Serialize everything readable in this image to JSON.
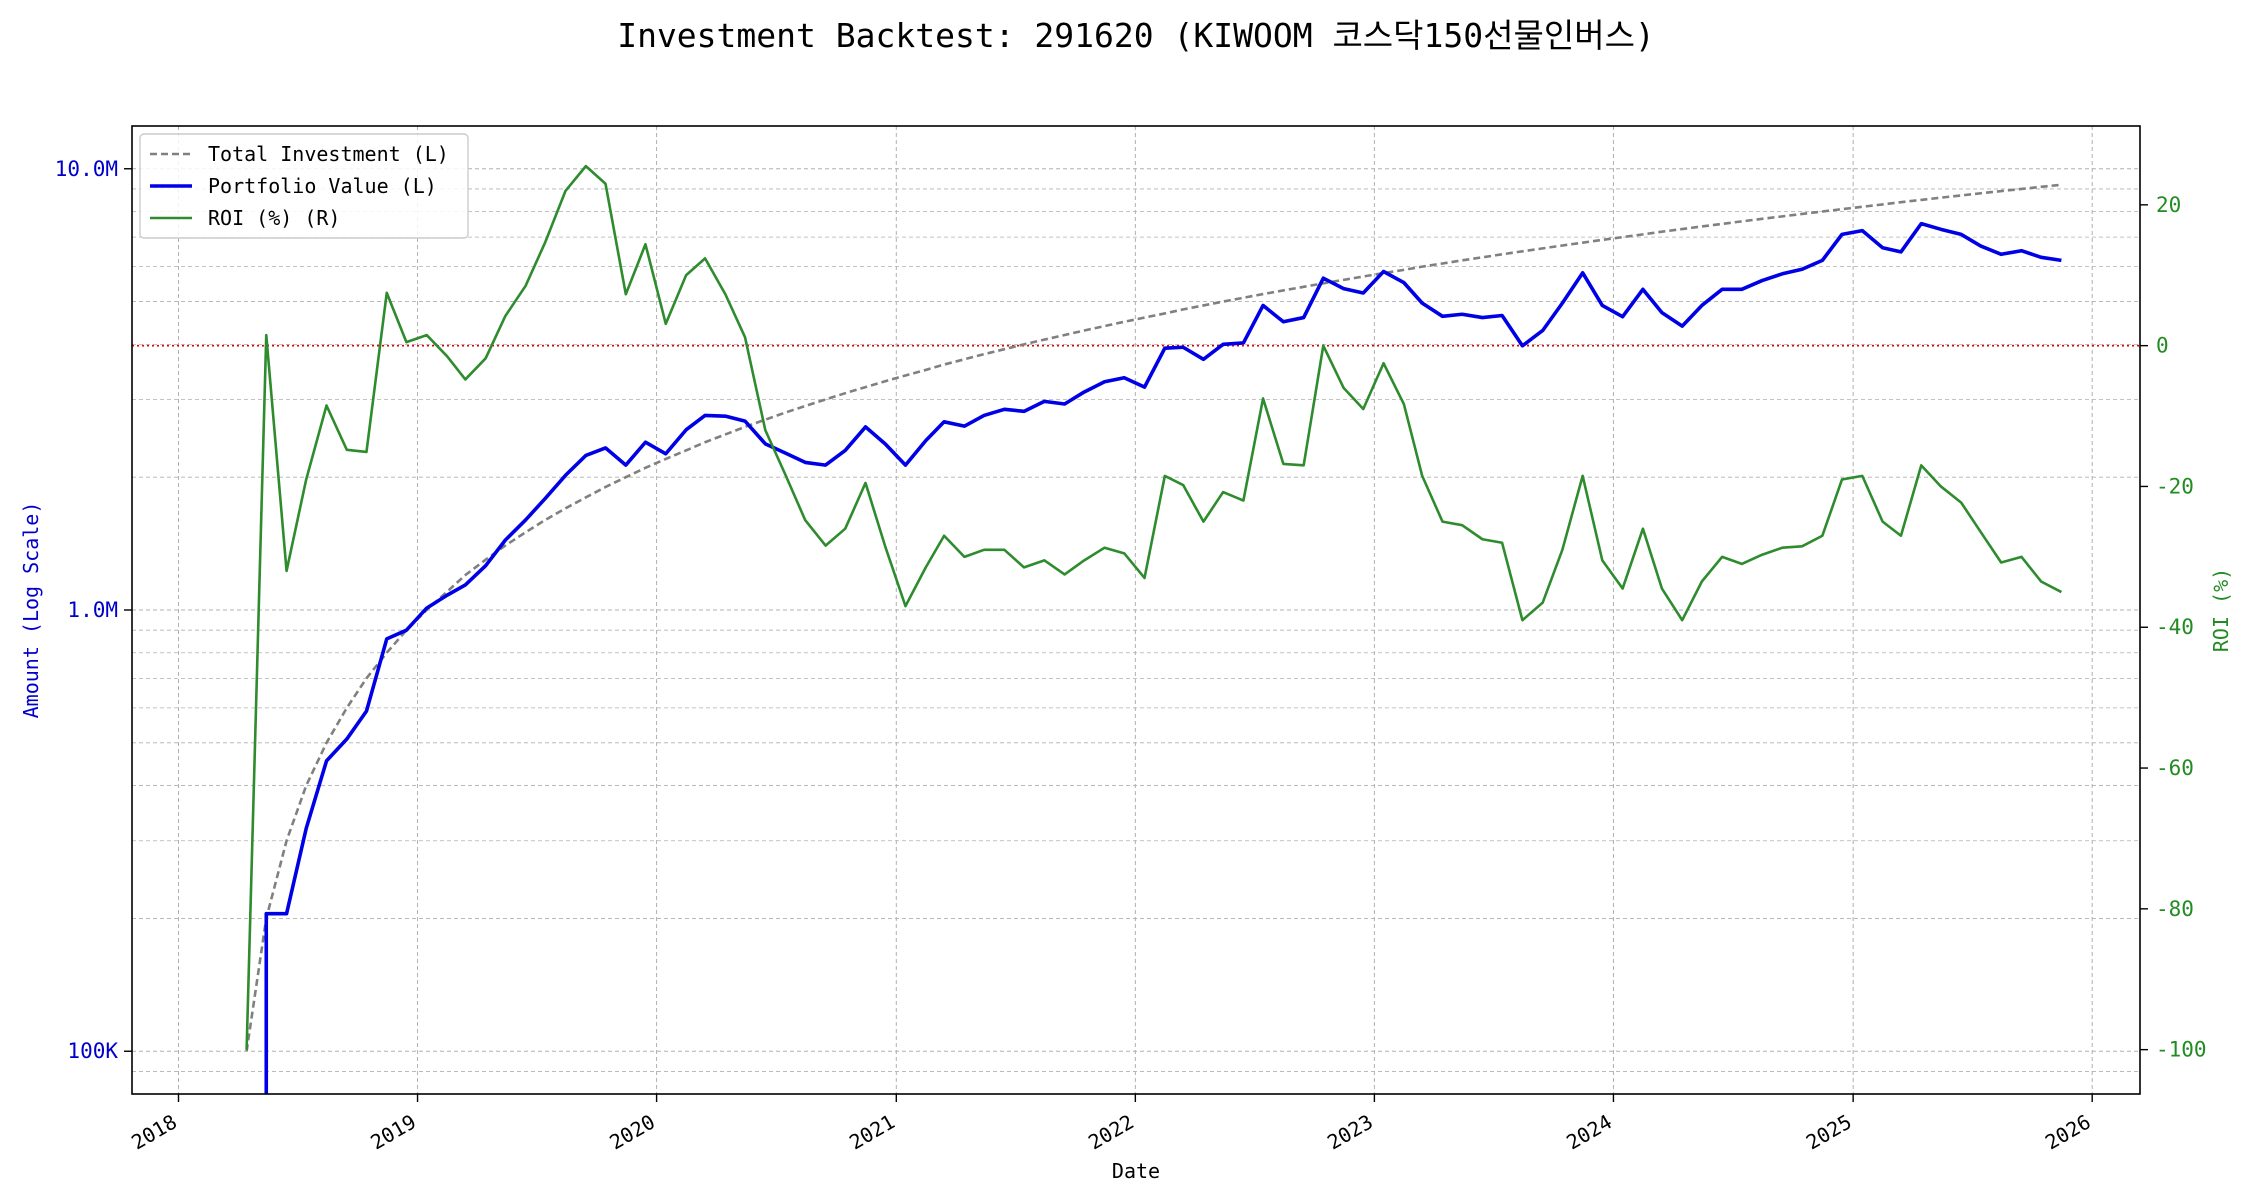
{
  "chart_data": {
    "type": "line",
    "title": "Investment Backtest: 291620 (KIWOOM 코스닥150선물인버스)",
    "xlabel": "Date",
    "ylabel_left": "Amount (Log Scale)",
    "ylabel_right": "ROI (%)",
    "x_ticks": [
      "2018",
      "2019",
      "2020",
      "2021",
      "2022",
      "2023",
      "2024",
      "2025",
      "2026"
    ],
    "y_left_ticks": [
      "100K",
      "1.0M",
      "10.0M"
    ],
    "y_right_ticks": [
      "-100",
      "-80",
      "-60",
      "-40",
      "-20",
      "0",
      "20"
    ],
    "y_left_scale": "log",
    "y_left_range": [
      80000,
      12500000
    ],
    "y_right_range": [
      -106.3,
      31.2
    ],
    "x_range": [
      "2017-10-22",
      "2026-03-15"
    ],
    "grid": true,
    "zero_reference_line": 0,
    "legend_position": "top-left",
    "legend": [
      "Total Investment (L)",
      "Portfolio Value (L)",
      "ROI (%) (R)"
    ],
    "colors": {
      "total_investment": "#808080",
      "portfolio_value": "#0000e6",
      "roi": "#2e8b2e",
      "zero_line": "#e00000",
      "grid": "#b0b0b0"
    },
    "series": [
      {
        "name": "Total Investment (L)",
        "axis": "left",
        "x": [
          "2018-04",
          "2018-05",
          "2018-06",
          "2018-07",
          "2018-08",
          "2018-09",
          "2018-10",
          "2018-11",
          "2018-12",
          "2019-01",
          "2019-02",
          "2019-03",
          "2019-04",
          "2019-05",
          "2019-06",
          "2019-07",
          "2019-08",
          "2019-09",
          "2019-10",
          "2019-11",
          "2019-12",
          "2020-01",
          "2020-02",
          "2020-03",
          "2020-04",
          "2020-05",
          "2020-06",
          "2020-07",
          "2020-08",
          "2020-09",
          "2020-10",
          "2020-11",
          "2020-12",
          "2021-01",
          "2021-02",
          "2021-03",
          "2021-04",
          "2021-05",
          "2021-06",
          "2021-07",
          "2021-08",
          "2021-09",
          "2021-10",
          "2021-11",
          "2021-12",
          "2022-01",
          "2022-02",
          "2022-03",
          "2022-04",
          "2022-05",
          "2022-06",
          "2022-07",
          "2022-08",
          "2022-09",
          "2022-10",
          "2022-11",
          "2022-12",
          "2023-01",
          "2023-02",
          "2023-03",
          "2023-04",
          "2023-05",
          "2023-06",
          "2023-07",
          "2023-08",
          "2023-09",
          "2023-10",
          "2023-11",
          "2023-12",
          "2024-01",
          "2024-02",
          "2024-03",
          "2024-04",
          "2024-05",
          "2024-06",
          "2024-07",
          "2024-08",
          "2024-09",
          "2024-10",
          "2024-11",
          "2024-12",
          "2025-01",
          "2025-02",
          "2025-03",
          "2025-04",
          "2025-05",
          "2025-06",
          "2025-07",
          "2025-08",
          "2025-09",
          "2025-10",
          "2025-11"
        ],
        "values": [
          100000,
          200000,
          300000,
          400000,
          500000,
          600000,
          700000,
          800000,
          900000,
          1000000,
          1100000,
          1200000,
          1300000,
          1400000,
          1500000,
          1600000,
          1700000,
          1800000,
          1900000,
          2000000,
          2100000,
          2200000,
          2300000,
          2400000,
          2500000,
          2600000,
          2700000,
          2800000,
          2900000,
          3000000,
          3100000,
          3200000,
          3300000,
          3400000,
          3500000,
          3600000,
          3700000,
          3800000,
          3900000,
          4000000,
          4100000,
          4200000,
          4300000,
          4400000,
          4500000,
          4600000,
          4700000,
          4800000,
          4900000,
          5000000,
          5100000,
          5200000,
          5300000,
          5400000,
          5500000,
          5600000,
          5700000,
          5800000,
          5900000,
          6000000,
          6100000,
          6200000,
          6300000,
          6400000,
          6500000,
          6600000,
          6700000,
          6800000,
          6900000,
          7000000,
          7100000,
          7200000,
          7300000,
          7400000,
          7500000,
          7600000,
          7700000,
          7800000,
          7900000,
          8000000,
          8100000,
          8200000,
          8300000,
          8400000,
          8500000,
          8600000,
          8700000,
          8800000,
          8900000,
          9000000,
          9100000,
          9200000
        ]
      },
      {
        "name": "Portfolio Value (L)",
        "axis": "left",
        "x": [
          "2018-05",
          "2018-06",
          "2018-07",
          "2018-08",
          "2018-09",
          "2018-10",
          "2018-11",
          "2018-12",
          "2019-01",
          "2019-02",
          "2019-03",
          "2019-04",
          "2019-05",
          "2019-06",
          "2019-07",
          "2019-08",
          "2019-09",
          "2019-10",
          "2019-11",
          "2019-12",
          "2020-01",
          "2020-02",
          "2020-03",
          "2020-04",
          "2020-05",
          "2020-06",
          "2020-07",
          "2020-08",
          "2020-09",
          "2020-10",
          "2020-11",
          "2020-12",
          "2021-01",
          "2021-02",
          "2021-03",
          "2021-04",
          "2021-05",
          "2021-06",
          "2021-07",
          "2021-08",
          "2021-09",
          "2021-10",
          "2021-11",
          "2021-12",
          "2022-01",
          "2022-02",
          "2022-03",
          "2022-04",
          "2022-05",
          "2022-06",
          "2022-07",
          "2022-08",
          "2022-09",
          "2022-10",
          "2022-11",
          "2022-12",
          "2023-01",
          "2023-02",
          "2023-03",
          "2023-04",
          "2023-05",
          "2023-06",
          "2023-07",
          "2023-08",
          "2023-09",
          "2023-10",
          "2023-11",
          "2023-12",
          "2024-01",
          "2024-02",
          "2024-03",
          "2024-04",
          "2024-05",
          "2024-06",
          "2024-07",
          "2024-08",
          "2024-09",
          "2024-10",
          "2024-11",
          "2024-12",
          "2025-01",
          "2025-02",
          "2025-03",
          "2025-04",
          "2025-05",
          "2025-06",
          "2025-07",
          "2025-08",
          "2025-09",
          "2025-10",
          "2025-11"
        ],
        "values": [
          205000,
          205000,
          320000,
          455000,
          510000,
          590000,
          860000,
          900000,
          1010000,
          1080000,
          1140000,
          1260000,
          1440000,
          1600000,
          1790000,
          2020000,
          2240000,
          2330000,
          2130000,
          2400000,
          2260000,
          2560000,
          2760000,
          2750000,
          2680000,
          2380000,
          2270000,
          2160000,
          2130000,
          2300000,
          2600000,
          2380000,
          2130000,
          2420000,
          2670000,
          2610000,
          2760000,
          2850000,
          2820000,
          2970000,
          2930000,
          3120000,
          3290000,
          3360000,
          3200000,
          3920000,
          3940000,
          3700000,
          4000000,
          4030000,
          4900000,
          4500000,
          4600000,
          5650000,
          5350000,
          5230000,
          5850000,
          5520000,
          4960000,
          4630000,
          4680000,
          4600000,
          4650000,
          3970000,
          4300000,
          4960000,
          5810000,
          4900000,
          4620000,
          5330000,
          4720000,
          4400000,
          4900000,
          5330000,
          5330000,
          5580000,
          5780000,
          5920000,
          6200000,
          7100000,
          7240000,
          6620000,
          6480000,
          7510000,
          7290000,
          7100000,
          6680000,
          6400000,
          6520000,
          6300000,
          6200000
        ]
      },
      {
        "name": "ROI (%) (R)",
        "axis": "right",
        "x": [
          "2018-04",
          "2018-05",
          "2018-06",
          "2018-07",
          "2018-08",
          "2018-09",
          "2018-10",
          "2018-11",
          "2018-12",
          "2019-01",
          "2019-02",
          "2019-03",
          "2019-04",
          "2019-05",
          "2019-06",
          "2019-07",
          "2019-08",
          "2019-09",
          "2019-10",
          "2019-11",
          "2019-12",
          "2020-01",
          "2020-02",
          "2020-03",
          "2020-04",
          "2020-05",
          "2020-06",
          "2020-07",
          "2020-08",
          "2020-09",
          "2020-10",
          "2020-11",
          "2020-12",
          "2021-01",
          "2021-02",
          "2021-03",
          "2021-04",
          "2021-05",
          "2021-06",
          "2021-07",
          "2021-08",
          "2021-09",
          "2021-10",
          "2021-11",
          "2021-12",
          "2022-01",
          "2022-02",
          "2022-03",
          "2022-04",
          "2022-05",
          "2022-06",
          "2022-07",
          "2022-08",
          "2022-09",
          "2022-10",
          "2022-11",
          "2022-12",
          "2023-01",
          "2023-02",
          "2023-03",
          "2023-04",
          "2023-05",
          "2023-06",
          "2023-07",
          "2023-08",
          "2023-09",
          "2023-10",
          "2023-11",
          "2023-12",
          "2024-01",
          "2024-02",
          "2024-03",
          "2024-04",
          "2024-05",
          "2024-06",
          "2024-07",
          "2024-08",
          "2024-09",
          "2024-10",
          "2024-11",
          "2024-12",
          "2025-01",
          "2025-02",
          "2025-03",
          "2025-04",
          "2025-05",
          "2025-06",
          "2025-07",
          "2025-08",
          "2025-09",
          "2025-10",
          "2025-11"
        ],
        "values": [
          -100,
          1.5,
          -32,
          -19,
          -8.5,
          -14.8,
          -15.1,
          7.5,
          0.5,
          1.5,
          -1.5,
          -4.8,
          -1.8,
          4.2,
          8.5,
          14.7,
          22,
          25.5,
          23,
          7.3,
          14.4,
          3.1,
          10,
          12.4,
          7.3,
          1.2,
          -12,
          -18.2,
          -24.8,
          -28.4,
          -26,
          -19.5,
          -28.5,
          -37,
          -31.5,
          -27,
          -30,
          -29,
          -29,
          -31.5,
          -30.5,
          -32.5,
          -30.5,
          -28.7,
          -29.5,
          -33,
          -18.5,
          -19.8,
          -25,
          -20.8,
          -22,
          -7.5,
          -16.8,
          -17,
          0,
          -6,
          -9,
          -2.5,
          -8.3,
          -18.5,
          -25,
          -25.5,
          -27.5,
          -28,
          -39,
          -36.5,
          -29,
          -18.5,
          -30.5,
          -34.5,
          -26,
          -34.5,
          -39,
          -33.5,
          -30,
          -31,
          -29.7,
          -28.7,
          -28.5,
          -27,
          -19,
          -18.5,
          -25,
          -27,
          -17,
          -20,
          -22.3,
          -26.5,
          -30.8,
          -30,
          -33.5,
          -35
        ]
      }
    ]
  }
}
